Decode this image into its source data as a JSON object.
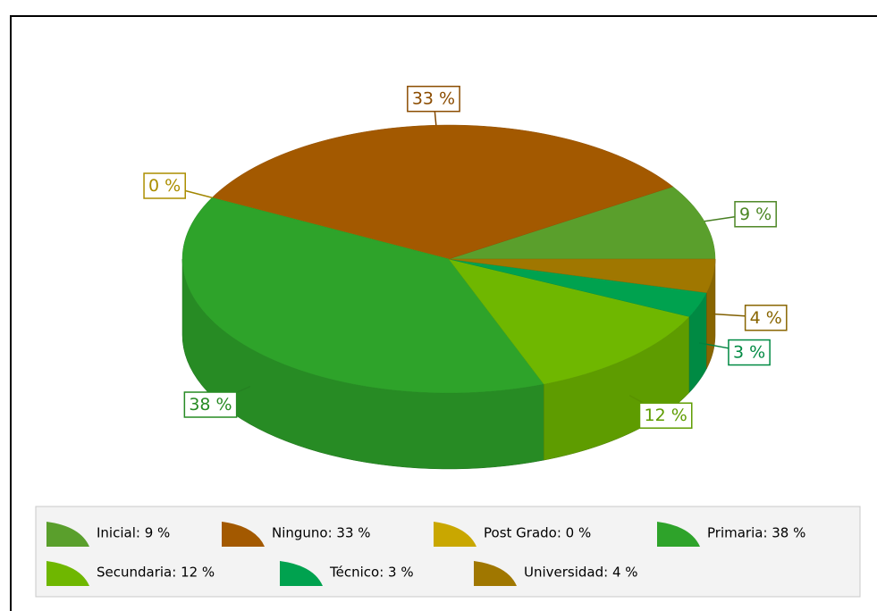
{
  "chart_data": {
    "type": "pie3d",
    "categories": [
      "Inicial: 9 %",
      "Ninguno: 33 %",
      "Post Grado: 0 %",
      "Primaria: 38 %",
      "Secundaria: 12 %",
      "Técnico: 3 %",
      "Universidad: 4 %"
    ],
    "values": [
      9,
      33,
      0,
      38,
      12,
      3,
      4
    ],
    "value_labels": [
      "9 %",
      "33 %",
      "0 %",
      "38 %",
      "12 %",
      "3 %",
      "4 %"
    ],
    "colors": [
      "#5a9f2c",
      "#a35900",
      "#c9a700",
      "#2ea32a",
      "#6fb700",
      "#00a24f",
      "#a07700"
    ],
    "legend": "bottom"
  }
}
